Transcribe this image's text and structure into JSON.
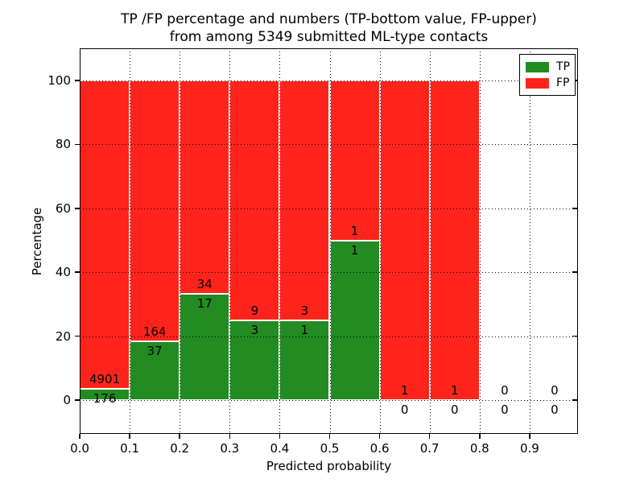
{
  "title": {
    "line1": "TP /FP percentage and numbers (TP-bottom value, FP-upper)",
    "line2": "from among 5349 submitted ML-type contacts"
  },
  "axes": {
    "xlabel": "Predicted probability",
    "ylabel": "Percentage",
    "x_ticks": [
      "0.0",
      "0.1",
      "0.2",
      "0.3",
      "0.4",
      "0.5",
      "0.6",
      "0.7",
      "0.8",
      "0.9"
    ],
    "y_ticks": [
      "0",
      "20",
      "40",
      "60",
      "80",
      "100"
    ]
  },
  "legend": {
    "items": [
      {
        "label": "TP",
        "color": "#228b22"
      },
      {
        "label": "FP",
        "color": "#ff241b"
      }
    ]
  },
  "colors": {
    "tp": "#228b22",
    "fp": "#ff241b",
    "grid": "#000000",
    "text": "#000000",
    "background": "#ffffff"
  },
  "chart_data": {
    "type": "bar",
    "stacked": true,
    "title": "TP /FP percentage and numbers (TP-bottom value, FP-upper) from among 5349 submitted ML-type contacts",
    "xlabel": "Predicted probability",
    "ylabel": "Percentage",
    "categories": [
      "0.0-0.1",
      "0.1-0.2",
      "0.2-0.3",
      "0.3-0.4",
      "0.4-0.5",
      "0.5-0.6",
      "0.6-0.7",
      "0.7-0.8",
      "0.8-0.9",
      "0.9-1.0"
    ],
    "bin_starts": [
      0.0,
      0.1,
      0.2,
      0.3,
      0.4,
      0.5,
      0.6,
      0.7,
      0.8,
      0.9
    ],
    "bin_width": 0.1,
    "series": [
      {
        "name": "TP",
        "color": "#228b22",
        "counts": [
          176,
          37,
          17,
          3,
          1,
          1,
          0,
          0,
          0,
          0
        ]
      },
      {
        "name": "FP",
        "color": "#ff241b",
        "counts": [
          4901,
          164,
          34,
          9,
          3,
          1,
          1,
          1,
          0,
          0
        ]
      }
    ],
    "tp_percentages": [
      3.5,
      18.4,
      33.3,
      25.0,
      25.0,
      50.0,
      0.0,
      0.0,
      null,
      null
    ],
    "bar_total_percent": [
      100,
      100,
      100,
      100,
      100,
      100,
      100,
      100,
      0,
      0
    ],
    "xlim": [
      0.0,
      1.0
    ],
    "ylim": [
      -10.6,
      110.1
    ],
    "grid": "dotted",
    "legend_position": "upper right"
  }
}
